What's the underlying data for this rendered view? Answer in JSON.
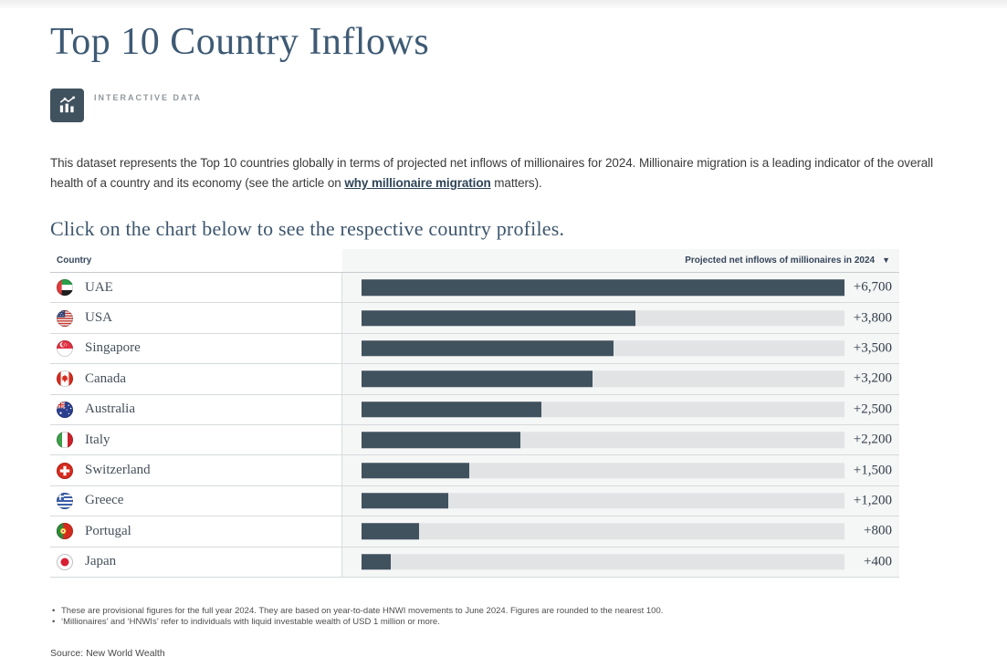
{
  "page": {
    "title": "Top 10 Country Inflows",
    "badge_label": "INTERACTIVE DATA",
    "description": {
      "intro": "This dataset represents the Top 10 countries globally in terms of projected net inflows of millionaires for 2024. Millionaire migration is a leading indicator of the overall health of a country and its economy (see the article on ",
      "link_text": "why millionaire migration",
      "outro": " matters)."
    },
    "subheading": "Click on the chart below to see the respective country profiles.",
    "source": "Source: New World Wealth"
  },
  "table": {
    "columns": [
      "Country",
      "Projected net inflows of millionaires in 2024"
    ],
    "sort_icon": "▼",
    "rows": [
      {
        "country": "UAE",
        "flag": "uae",
        "value": 6700,
        "label": "+6,700"
      },
      {
        "country": "USA",
        "flag": "usa",
        "value": 3800,
        "label": "+3,800"
      },
      {
        "country": "Singapore",
        "flag": "singapore",
        "value": 3500,
        "label": "+3,500"
      },
      {
        "country": "Canada",
        "flag": "canada",
        "value": 3200,
        "label": "+3,200"
      },
      {
        "country": "Australia",
        "flag": "australia",
        "value": 2500,
        "label": "+2,500"
      },
      {
        "country": "Italy",
        "flag": "italy",
        "value": 2200,
        "label": "+2,200"
      },
      {
        "country": "Switzerland",
        "flag": "switzerland",
        "value": 1500,
        "label": "+1,500"
      },
      {
        "country": "Greece",
        "flag": "greece",
        "value": 1200,
        "label": "+1,200"
      },
      {
        "country": "Portugal",
        "flag": "portugal",
        "value": 800,
        "label": "+800"
      },
      {
        "country": "Japan",
        "flag": "japan",
        "value": 400,
        "label": "+400"
      }
    ]
  },
  "footnotes": [
    "These are provisional figures for the full year 2024. They are based on year-to-date HNWI movements to June 2024. Figures are rounded to the nearest 100.",
    "‘Millionaires’ and ‘HNWIs’ refer to individuals with liquid investable wealth of USD 1 million or more."
  ],
  "colors": {
    "accent_bar": "#41525f",
    "bar_track": "#e1e3e5",
    "chart_column_bg": "#f5f6f6",
    "title_text": "#3e5a74"
  },
  "chart_data": {
    "type": "bar",
    "orientation": "horizontal",
    "title": "Top 10 Country Inflows",
    "series_label": "Projected net inflows of millionaires in 2024",
    "categories": [
      "UAE",
      "USA",
      "Singapore",
      "Canada",
      "Australia",
      "Italy",
      "Switzerland",
      "Greece",
      "Portugal",
      "Japan"
    ],
    "values": [
      6700,
      3800,
      3500,
      3200,
      2500,
      2200,
      1500,
      1200,
      800,
      400
    ],
    "value_labels": [
      "+6,700",
      "+3,800",
      "+3,500",
      "+3,200",
      "+2,500",
      "+2,200",
      "+1,500",
      "+1,200",
      "+800",
      "+400"
    ],
    "xlim": [
      0,
      6700
    ],
    "grid": false,
    "legend_position": "none",
    "sort": "descending"
  }
}
